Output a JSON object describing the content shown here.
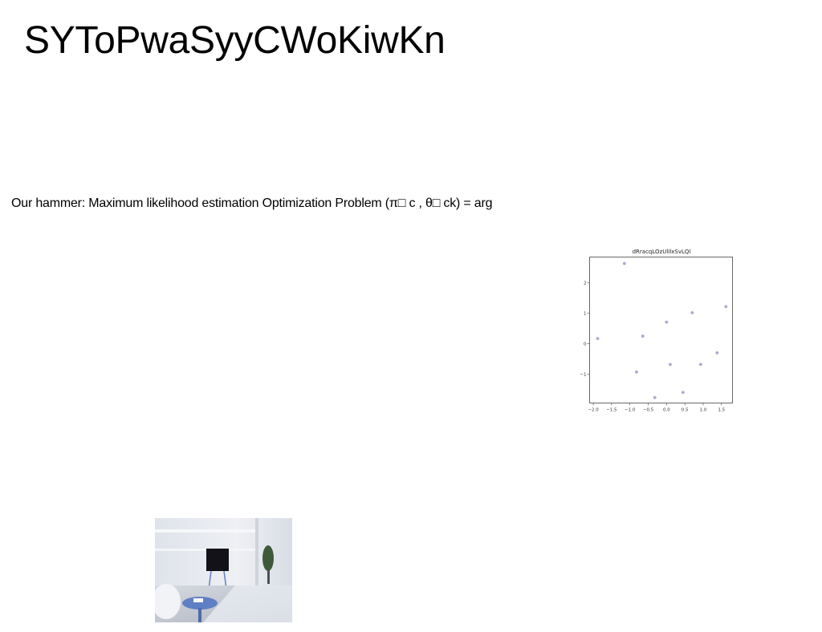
{
  "slide": {
    "title": "SYToPwaSyyCWoKiwKn",
    "body": "Our hammer: Maximum likelihood estimation Optimization Problem (π□ c , θ□ ck) = arg"
  },
  "chart_data": {
    "type": "scatter",
    "title": "dRracqLOzUlIlxSvLQl",
    "xlabel": "",
    "ylabel": "",
    "xlim": [
      -2.1,
      1.8
    ],
    "ylim": [
      -1.95,
      2.85
    ],
    "x_ticks": [
      "−2.0",
      "−1.5",
      "−1.0",
      "−0.5",
      "0.0",
      "0.5",
      "1.0",
      "1.5"
    ],
    "y_ticks": [
      "−1",
      "0",
      "1",
      "2"
    ],
    "grid": false,
    "marker_color": "#a9a9d0",
    "x": [
      -1.88,
      -1.15,
      -0.82,
      -0.65,
      -0.32,
      0.0,
      0.1,
      0.45,
      0.7,
      0.93,
      1.38,
      1.62
    ],
    "y": [
      0.17,
      2.64,
      -0.93,
      0.25,
      -1.77,
      0.71,
      -0.68,
      -1.6,
      1.02,
      -0.68,
      -0.3,
      1.22
    ]
  },
  "photo": {
    "subject": "living-room-interior",
    "palette": {
      "wall": "#e9ecf1",
      "floor": "#c9cdd6",
      "tv": "#121218",
      "table": "#5f7fc4",
      "plant": "#3f5a3a"
    }
  }
}
